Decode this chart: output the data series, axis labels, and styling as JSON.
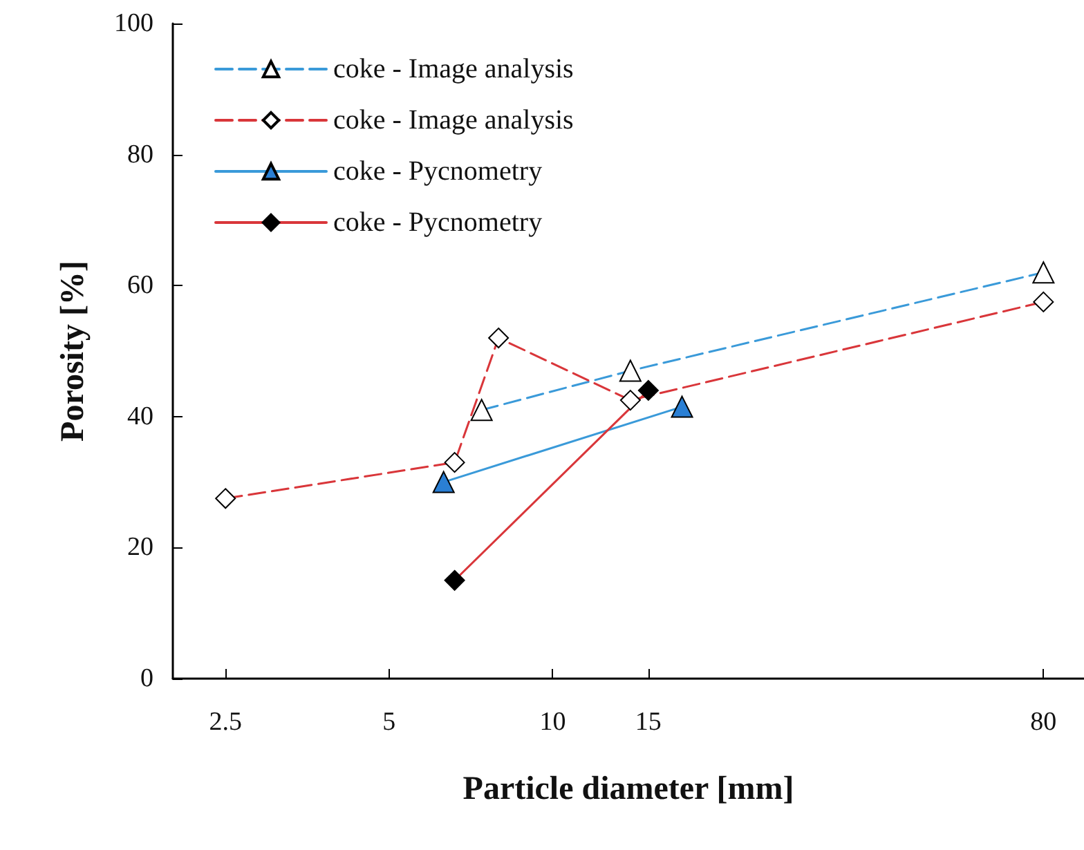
{
  "chart_data": {
    "type": "line",
    "xlabel": "Particle diameter [mm]",
    "ylabel": "Porosity [%]",
    "log": "x",
    "xlim": [
      2,
      95
    ],
    "xticks": [
      2.5,
      5,
      10,
      15,
      80
    ],
    "ylim": [
      0,
      100
    ],
    "yticks": [
      0,
      20,
      40,
      60,
      80,
      100
    ],
    "grid": false,
    "legend": "top left",
    "series": [
      {
        "name": "coke - Image analysis",
        "color": "#3a9ad9",
        "marker": "triangle",
        "colors": [
          "#ffffff",
          "#ffffff",
          "#ffffff"
        ],
        "line_style": "dashed",
        "x": [
          7.4,
          13.9,
          80
        ],
        "values": [
          41,
          47,
          62
        ]
      },
      {
        "name": "coke - Image analysis",
        "color": "#d9363a",
        "marker": "diamond",
        "colors": [
          "#ffffff",
          "#ffffff",
          "#ffffff",
          "#ffffff",
          "#ffffff"
        ],
        "line_style": "dashed",
        "x": [
          2.5,
          6.6,
          7.95,
          13.9,
          80
        ],
        "values": [
          27.5,
          33,
          52,
          42.5,
          57.5
        ]
      },
      {
        "name": "coke - Pycnometry",
        "color": "#3a9ad9",
        "marker": "triangle",
        "colors": [
          "#2a7fd4",
          "#2a7fd4"
        ],
        "line_style": "solid",
        "x": [
          6.3,
          17.3
        ],
        "values": [
          30,
          41.5
        ]
      },
      {
        "name": "coke - Pycnometry",
        "color": "#d9363a",
        "marker": "diamond",
        "colors": [
          "#000000",
          "#000000"
        ],
        "line_style": "solid",
        "x": [
          6.6,
          15
        ],
        "values": [
          15,
          44
        ]
      }
    ]
  }
}
